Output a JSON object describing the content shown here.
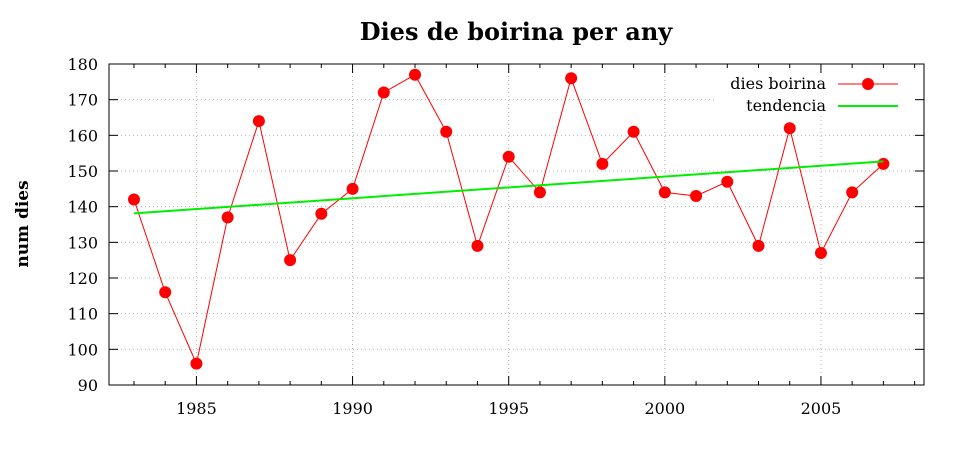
{
  "chart_data": {
    "type": "line",
    "title": "Dies de boirina per any",
    "xlabel": "",
    "ylabel": "num dies",
    "xlim": [
      1982.2,
      2008.3
    ],
    "ylim": [
      90,
      180
    ],
    "x_ticks": [
      1985,
      1990,
      1995,
      2000,
      2005
    ],
    "y_ticks": [
      90,
      100,
      110,
      120,
      130,
      140,
      150,
      160,
      170,
      180
    ],
    "grid": true,
    "legend_position": "top-right",
    "series": [
      {
        "name": "dies boirina",
        "style": "line+points",
        "color": "#ff0000",
        "x": [
          1983,
          1984,
          1985,
          1986,
          1987,
          1988,
          1989,
          1990,
          1991,
          1992,
          1993,
          1994,
          1995,
          1996,
          1997,
          1998,
          1999,
          2000,
          2001,
          2002,
          2003,
          2004,
          2005,
          2006,
          2007
        ],
        "y": [
          142,
          116,
          96,
          137,
          164,
          125,
          138,
          145,
          172,
          177,
          161,
          129,
          154,
          144,
          176,
          152,
          161,
          144,
          143,
          147,
          129,
          162,
          127,
          144,
          152
        ]
      },
      {
        "name": "tendencia",
        "style": "line",
        "color": "#00ee00",
        "x": [
          1983,
          2007
        ],
        "y": [
          138.1,
          152.7
        ]
      }
    ]
  }
}
